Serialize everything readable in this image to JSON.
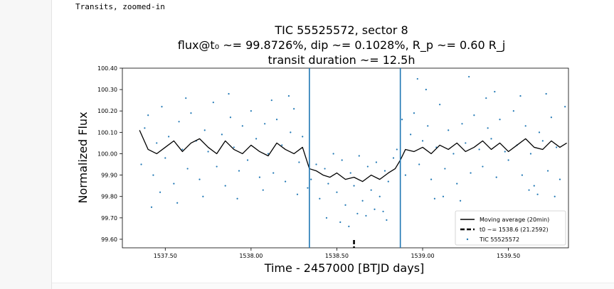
{
  "cell": {
    "caption": "Transits, zoomed-in"
  },
  "chart_data": {
    "type": "scatter",
    "title_lines": [
      "TIC 55525572, sector 8",
      "flux@t₀ ~= 99.8726%, dip ~= 0.1028%, R_p ~= 0.60 R_j",
      "transit duration ~= 12.5h"
    ],
    "xlabel": "Time - 2457000 [BTJD days]",
    "ylabel": "Normalized Flux",
    "xlim": [
      1537.25,
      1539.85
    ],
    "ylim": [
      99.56,
      100.4
    ],
    "xticks": [
      1537.5,
      1538.0,
      1538.5,
      1539.0,
      1539.5
    ],
    "xtick_labels": [
      "1537.50",
      "1538.00",
      "1538.50",
      "1539.00",
      "1539.50"
    ],
    "yticks": [
      99.6,
      99.7,
      99.8,
      99.9,
      100.0,
      100.1,
      100.2,
      100.3,
      100.4
    ],
    "ytick_labels": [
      "99.60",
      "99.70",
      "99.80",
      "99.90",
      "100.00",
      "100.10",
      "100.20",
      "100.30",
      "100.40"
    ],
    "transit_window": [
      1538.34,
      1538.87
    ],
    "t0": 1538.6,
    "legend": {
      "placement": "lower right",
      "entries": [
        {
          "label": "Moving average (20min)",
          "style": "line"
        },
        {
          "label": "t0 ~= 1538.6 (21.2592)",
          "style": "dashed"
        },
        {
          "label": "TIC 55525572",
          "style": "dot"
        }
      ]
    },
    "colors": {
      "scatter": "#1f77b4",
      "moving_average": "#000000",
      "transit_lines": "#1f77b4",
      "t0_marker": "#000000"
    },
    "series": [
      {
        "name": "Moving average (20min)",
        "x": [
          1537.35,
          1537.4,
          1537.45,
          1537.5,
          1537.55,
          1537.6,
          1537.65,
          1537.7,
          1537.75,
          1537.8,
          1537.85,
          1537.9,
          1537.95,
          1538.0,
          1538.05,
          1538.1,
          1538.15,
          1538.2,
          1538.25,
          1538.3,
          1538.34,
          1538.38,
          1538.42,
          1538.46,
          1538.5,
          1538.55,
          1538.6,
          1538.65,
          1538.7,
          1538.75,
          1538.8,
          1538.84,
          1538.87,
          1538.9,
          1538.95,
          1539.0,
          1539.05,
          1539.1,
          1539.15,
          1539.2,
          1539.25,
          1539.3,
          1539.35,
          1539.4,
          1539.45,
          1539.5,
          1539.55,
          1539.6,
          1539.65,
          1539.7,
          1539.75,
          1539.8,
          1539.84
        ],
        "y": [
          100.11,
          100.02,
          100.0,
          100.03,
          100.06,
          100.01,
          100.05,
          100.07,
          100.03,
          100.0,
          100.06,
          100.02,
          100.0,
          100.04,
          100.01,
          99.99,
          100.05,
          100.02,
          100.0,
          100.03,
          99.93,
          99.92,
          99.9,
          99.89,
          99.91,
          99.88,
          99.89,
          99.87,
          99.9,
          99.88,
          99.91,
          99.93,
          99.97,
          100.02,
          100.01,
          100.03,
          100.0,
          100.04,
          100.02,
          100.05,
          100.01,
          100.03,
          100.06,
          100.02,
          100.05,
          100.01,
          100.04,
          100.07,
          100.03,
          100.02,
          100.06,
          100.03,
          100.05
        ]
      },
      {
        "name": "TIC 55525572",
        "x": [
          1537.36,
          1537.38,
          1537.4,
          1537.43,
          1537.45,
          1537.48,
          1537.5,
          1537.52,
          1537.55,
          1537.58,
          1537.6,
          1537.63,
          1537.65,
          1537.68,
          1537.7,
          1537.73,
          1537.75,
          1537.78,
          1537.8,
          1537.83,
          1537.85,
          1537.88,
          1537.9,
          1537.93,
          1537.95,
          1537.98,
          1538.0,
          1538.03,
          1538.05,
          1538.08,
          1538.1,
          1538.13,
          1538.15,
          1538.18,
          1538.2,
          1538.23,
          1538.25,
          1538.28,
          1538.3,
          1538.33,
          1538.35,
          1538.38,
          1538.4,
          1538.43,
          1538.45,
          1538.48,
          1538.5,
          1538.53,
          1538.55,
          1538.58,
          1538.6,
          1538.63,
          1538.65,
          1538.68,
          1538.7,
          1538.73,
          1538.75,
          1538.78,
          1538.8,
          1538.83,
          1538.85,
          1538.88,
          1538.9,
          1538.93,
          1538.95,
          1538.98,
          1539.0,
          1539.03,
          1539.05,
          1539.08,
          1539.1,
          1539.13,
          1539.15,
          1539.18,
          1539.2,
          1539.23,
          1539.25,
          1539.28,
          1539.3,
          1539.33,
          1539.35,
          1539.38,
          1539.4,
          1539.43,
          1539.45,
          1539.48,
          1539.5,
          1539.53,
          1539.55,
          1539.58,
          1539.6,
          1539.63,
          1539.65,
          1539.68,
          1539.7,
          1539.73,
          1539.75,
          1539.78,
          1539.8,
          1539.83,
          1537.42,
          1537.47,
          1537.62,
          1537.72,
          1537.87,
          1538.07,
          1538.22,
          1538.44,
          1538.52,
          1538.62,
          1538.72,
          1538.79,
          1539.02,
          1539.12,
          1539.22,
          1539.42,
          1539.57,
          1539.67,
          1539.77,
          1538.97,
          1539.27,
          1537.57,
          1537.92,
          1538.12,
          1538.27,
          1538.57,
          1538.67,
          1538.77,
          1539.07,
          1539.37,
          1539.62,
          1539.72
        ],
        "y": [
          99.95,
          100.12,
          100.18,
          99.9,
          100.05,
          100.22,
          99.98,
          100.08,
          99.86,
          100.15,
          100.02,
          99.93,
          100.19,
          100.06,
          99.88,
          100.11,
          100.01,
          100.24,
          99.94,
          100.09,
          99.85,
          100.17,
          100.03,
          99.92,
          100.13,
          99.97,
          100.2,
          100.07,
          99.89,
          100.14,
          100.0,
          99.91,
          100.16,
          100.04,
          99.87,
          100.1,
          100.21,
          99.96,
          100.08,
          99.84,
          99.88,
          99.95,
          99.79,
          99.93,
          99.86,
          100.0,
          99.82,
          99.97,
          99.76,
          99.91,
          99.85,
          99.99,
          99.78,
          99.94,
          99.83,
          99.96,
          99.8,
          99.92,
          99.87,
          99.98,
          100.02,
          100.16,
          99.9,
          100.09,
          100.19,
          99.95,
          100.06,
          100.13,
          99.88,
          100.03,
          100.23,
          99.93,
          100.11,
          100.0,
          99.86,
          100.14,
          100.05,
          99.91,
          100.18,
          100.02,
          99.94,
          100.12,
          100.07,
          99.89,
          100.16,
          100.01,
          99.97,
          100.2,
          100.04,
          99.9,
          100.13,
          100.0,
          99.85,
          100.1,
          100.06,
          99.92,
          100.17,
          100.03,
          99.88,
          100.22,
          99.75,
          99.82,
          100.26,
          99.8,
          100.28,
          99.83,
          100.27,
          99.7,
          99.68,
          99.72,
          99.74,
          99.69,
          100.3,
          99.8,
          99.78,
          100.29,
          100.27,
          99.81,
          99.8,
          100.35,
          100.36,
          99.77,
          99.79,
          100.25,
          99.81,
          99.66,
          99.71,
          99.73,
          99.79,
          100.26,
          99.83,
          100.28
        ]
      }
    ]
  }
}
